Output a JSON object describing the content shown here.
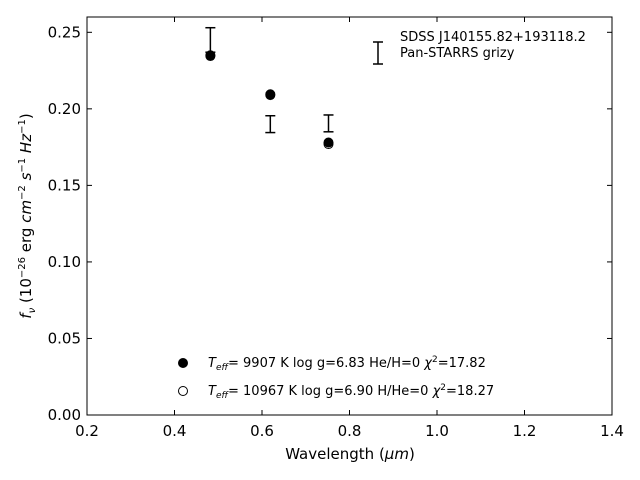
{
  "chart_data": {
    "type": "scatter",
    "xlabel_prefix": "Wavelength (",
    "xlabel_unit": "μm",
    "xlabel_suffix": ")",
    "ylabel": "f_ν (10^−26 erg cm^−2 s^−1 Hz^−1)",
    "xlim": [
      0.2,
      1.4
    ],
    "ylim": [
      0.0,
      0.26
    ],
    "xticks": [
      "0.2",
      "0.4",
      "0.6",
      "0.8",
      "1.0",
      "1.2",
      "1.4"
    ],
    "yticks": [
      "0.00",
      "0.05",
      "0.10",
      "0.15",
      "0.20",
      "0.25"
    ],
    "grid": false,
    "observed": {
      "name": "SDSS J140155.82+193118.2",
      "name2": "Pan-STARRS grizy",
      "points": [
        {
          "x": 0.482,
          "y": 0.245,
          "err": 0.008
        },
        {
          "x": 0.619,
          "y": 0.19,
          "err": 0.0055
        },
        {
          "x": 0.752,
          "y": 0.1905,
          "err": 0.0055
        }
      ]
    },
    "model_filled": {
      "label": "T_eff=  9907 K  log g=6.83  He/H=0  χ²=17.82",
      "teff_label": "=  9907 K  log g=6.83  He/H=0  ",
      "chi": "=17.82",
      "points": [
        {
          "x": 0.482,
          "y": 0.235
        },
        {
          "x": 0.619,
          "y": 0.2095
        },
        {
          "x": 0.752,
          "y": 0.178
        }
      ]
    },
    "model_open": {
      "label": "T_eff= 10967 K  log g=6.90  H/He=0  χ²=18.27",
      "teff_label": "= 10967 K  log g=6.90  H/He=0  ",
      "chi": "=18.27",
      "points": [
        {
          "x": 0.482,
          "y": 0.2345
        },
        {
          "x": 0.619,
          "y": 0.209
        },
        {
          "x": 0.752,
          "y": 0.177
        }
      ]
    }
  }
}
